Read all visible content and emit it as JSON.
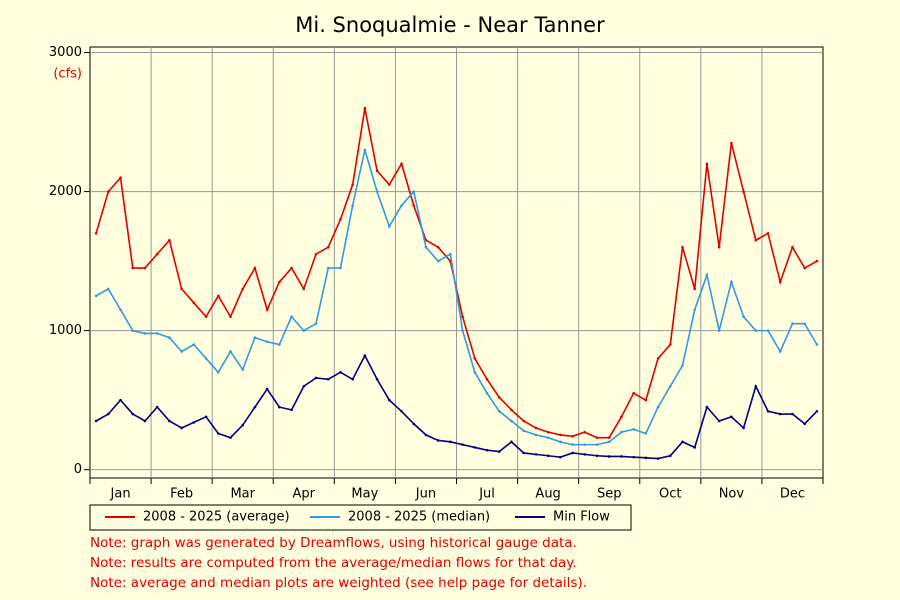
{
  "chart_data": {
    "type": "line",
    "title": "Mi. Snoqualmie - Near Tanner",
    "y_unit": "(cfs)",
    "categories": [
      null,
      null,
      "Jan",
      null,
      null,
      null,
      null,
      "Feb",
      null,
      null,
      null,
      null,
      "Mar",
      null,
      null,
      null,
      null,
      "Apr",
      null,
      null,
      null,
      null,
      "May",
      null,
      null,
      null,
      null,
      "Jun",
      null,
      null,
      null,
      null,
      "Jul",
      null,
      null,
      null,
      null,
      "Aug",
      null,
      null,
      null,
      null,
      "Sep",
      null,
      null,
      null,
      null,
      "Oct",
      null,
      null,
      null,
      null,
      "Nov",
      null,
      null,
      null,
      null,
      "Dec",
      null,
      null
    ],
    "series": [
      {
        "name": "2008 - 2025 (average)",
        "color": "#e00000",
        "values": [
          1700,
          2000,
          2100,
          1450,
          1450,
          1550,
          1650,
          1300,
          1200,
          1100,
          1250,
          1100,
          1300,
          1450,
          1150,
          1350,
          1450,
          1300,
          1550,
          1600,
          1800,
          2050,
          2600,
          2150,
          2050,
          2200,
          1900,
          1650,
          1600,
          1500,
          1100,
          800,
          650,
          520,
          430,
          350,
          300,
          270,
          250,
          240,
          270,
          230,
          230,
          380,
          550,
          500,
          800,
          900,
          1600,
          1300,
          2200,
          1600,
          2350,
          2000,
          1650,
          1700,
          1350,
          1600,
          1450,
          1500
        ]
      },
      {
        "name": "2008 - 2025 (median)",
        "color": "#3399dd",
        "values": [
          1250,
          1300,
          1150,
          1000,
          980,
          980,
          950,
          850,
          900,
          800,
          700,
          850,
          720,
          950,
          920,
          900,
          1100,
          1000,
          1050,
          1450,
          1450,
          1900,
          2300,
          2000,
          1750,
          1900,
          2000,
          1600,
          1500,
          1550,
          1000,
          700,
          550,
          420,
          350,
          280,
          250,
          230,
          200,
          180,
          180,
          180,
          200,
          270,
          290,
          260,
          450,
          600,
          750,
          1150,
          1400,
          1000,
          1350,
          1100,
          1000,
          1000,
          850,
          1050,
          1050,
          900
        ]
      },
      {
        "name": "Min Flow",
        "color": "#000080",
        "values": [
          350,
          400,
          500,
          400,
          350,
          450,
          350,
          300,
          340,
          380,
          260,
          230,
          320,
          450,
          580,
          450,
          430,
          600,
          660,
          650,
          700,
          650,
          820,
          650,
          500,
          420,
          330,
          250,
          210,
          200,
          180,
          160,
          140,
          130,
          200,
          120,
          110,
          100,
          90,
          120,
          110,
          100,
          95,
          95,
          90,
          85,
          80,
          100,
          200,
          160,
          450,
          350,
          380,
          300,
          600,
          420,
          400,
          400,
          330,
          420
        ]
      }
    ],
    "ylim": [
      -60,
      3040
    ],
    "yticks": [
      0,
      1000,
      2000,
      3000
    ],
    "grid": true,
    "notes": [
      "Note: graph was generated by Dreamflows, using historical gauge data.",
      "Note: results are computed from the average/median flows for that day.",
      "Note: average and median plots are weighted (see help page for details)."
    ]
  }
}
